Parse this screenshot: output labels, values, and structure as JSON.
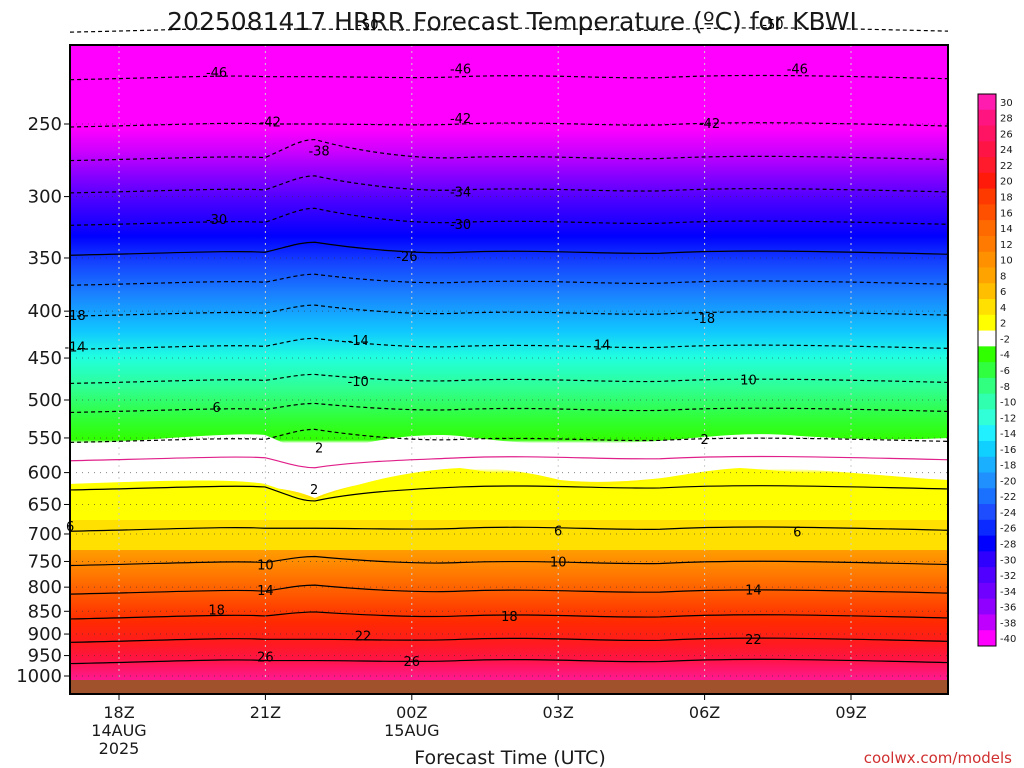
{
  "chart_data": {
    "type": "heatmap",
    "title": "2025081417 HRRR Forecast Temperature (ºC) for KBWI",
    "xlabel": "Forecast Time (UTC)",
    "credit": "coolwx.com/models",
    "x_ticks": [
      {
        "hour": 1,
        "label": "18Z",
        "sub1": "14AUG",
        "sub2": "2025"
      },
      {
        "hour": 4,
        "label": "21Z",
        "sub1": "",
        "sub2": ""
      },
      {
        "hour": 7,
        "label": "00Z",
        "sub1": "15AUG",
        "sub2": ""
      },
      {
        "hour": 10,
        "label": "03Z",
        "sub1": "",
        "sub2": ""
      },
      {
        "hour": 13,
        "label": "06Z",
        "sub1": "",
        "sub2": ""
      },
      {
        "hour": 16,
        "label": "09Z",
        "sub1": "",
        "sub2": ""
      }
    ],
    "y_ticks": [
      "250",
      "300",
      "350",
      "400",
      "450",
      "500",
      "550",
      "600",
      "650",
      "700",
      "750",
      "800",
      "850",
      "900",
      "950",
      "1000"
    ],
    "colorbar_ticks": [
      "30",
      "28",
      "26",
      "24",
      "22",
      "20",
      "18",
      "16",
      "14",
      "12",
      "10",
      "8",
      "6",
      "4",
      "2",
      "-2",
      "-4",
      "-6",
      "-8",
      "-10",
      "-12",
      "-14",
      "-16",
      "-18",
      "-20",
      "-22",
      "-24",
      "-26",
      "-28",
      "-30",
      "-32",
      "-34",
      "-36",
      "-38",
      "-40"
    ],
    "colorbar_colors": [
      "#ff1cae",
      "#ff1480",
      "#ff1464",
      "#ff1446",
      "#ff1a2c",
      "#ff1a0a",
      "#ff3a00",
      "#ff5000",
      "#ff6a00",
      "#ff7a00",
      "#ff9000",
      "#ffa300",
      "#ffbf00",
      "#ffe000",
      "#ffff00",
      "#ffffff",
      "#30ff00",
      "#30ff40",
      "#30ff80",
      "#30ffb0",
      "#30ffd8",
      "#20f0ff",
      "#10d0ff",
      "#1ab0ff",
      "#2090ff",
      "#1a70ff",
      "#1e4cff",
      "#0a2aff",
      "#0000ff",
      "#3000ff",
      "#5000ff",
      "#7000ff",
      "#9000ff",
      "#c000ff",
      "#ff00ff"
    ],
    "contour_labels": [
      {
        "t": "-50",
        "h": 6.1,
        "p": 195
      },
      {
        "t": "-50",
        "h": 14.4,
        "p": 195
      },
      {
        "t": "-46",
        "h": 3.0,
        "p": 220
      },
      {
        "t": "-46",
        "h": 8.0,
        "p": 218
      },
      {
        "t": "-46",
        "h": 14.9,
        "p": 218
      },
      {
        "t": "-42",
        "h": 4.1,
        "p": 249
      },
      {
        "t": "-42",
        "h": 8.0,
        "p": 247
      },
      {
        "t": "-42",
        "h": 13.1,
        "p": 250
      },
      {
        "t": "-38",
        "h": 5.1,
        "p": 268
      },
      {
        "t": "-34",
        "h": 8.0,
        "p": 297
      },
      {
        "t": "-30",
        "h": 3.0,
        "p": 318
      },
      {
        "t": "-30",
        "h": 8.0,
        "p": 322
      },
      {
        "t": "-26",
        "h": 6.9,
        "p": 349
      },
      {
        "t": "-18",
        "h": 0.1,
        "p": 405
      },
      {
        "t": "-18",
        "h": 13.0,
        "p": 408
      },
      {
        "t": "-14",
        "h": 0.1,
        "p": 438
      },
      {
        "t": "-14",
        "h": 5.9,
        "p": 431
      },
      {
        "t": "14",
        "h": 10.9,
        "p": 436
      },
      {
        "t": "-10",
        "h": 5.9,
        "p": 478
      },
      {
        "t": "10",
        "h": 13.9,
        "p": 476
      },
      {
        "t": "6",
        "h": 3.0,
        "p": 510
      },
      {
        "t": "2",
        "h": 5.1,
        "p": 565
      },
      {
        "t": "2",
        "h": 13.0,
        "p": 553
      },
      {
        "t": "2",
        "h": 5.0,
        "p": 627
      },
      {
        "t": "6",
        "h": 0.0,
        "p": 688
      },
      {
        "t": "6",
        "h": 10.0,
        "p": 696
      },
      {
        "t": "6",
        "h": 14.9,
        "p": 697
      },
      {
        "t": "10",
        "h": 4.0,
        "p": 758
      },
      {
        "t": "10",
        "h": 10.0,
        "p": 752
      },
      {
        "t": "14",
        "h": 4.0,
        "p": 808
      },
      {
        "t": "14",
        "h": 14.0,
        "p": 807
      },
      {
        "t": "18",
        "h": 3.0,
        "p": 848
      },
      {
        "t": "18",
        "h": 9.0,
        "p": 862
      },
      {
        "t": "22",
        "h": 6.0,
        "p": 906
      },
      {
        "t": "22",
        "h": 14.0,
        "p": 914
      },
      {
        "t": "26",
        "h": 4.0,
        "p": 955
      },
      {
        "t": "26",
        "h": 7.0,
        "p": 965
      }
    ]
  }
}
